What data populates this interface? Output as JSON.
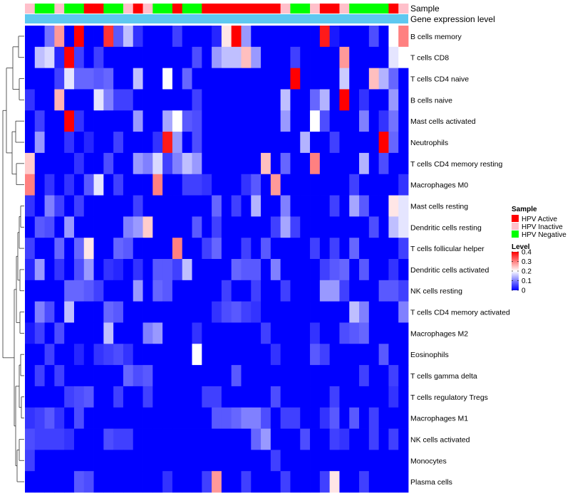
{
  "chart_data": {
    "type": "heatmap",
    "annotations": {
      "sample_label": "Sample",
      "expression_label": "Gene expression level",
      "sample_groups": [
        "Inactive",
        "Negative",
        "Negative",
        "Inactive",
        "Negative",
        "Negative",
        "Active",
        "Active",
        "Negative",
        "Negative",
        "Inactive",
        "Active",
        "Inactive",
        "Negative",
        "Negative",
        "Active",
        "Negative",
        "Negative",
        "Active",
        "Active",
        "Active",
        "Active",
        "Active",
        "Active",
        "Active",
        "Active",
        "Inactive",
        "Negative",
        "Negative",
        "Inactive",
        "Active",
        "Active",
        "Inactive",
        "Negative",
        "Negative",
        "Negative",
        "Negative",
        "Active",
        "Inactive"
      ]
    },
    "rows": [
      "B cells memory",
      "T cells CD8",
      "T cells CD4 naive",
      "B cells naive",
      "Mast cells activated",
      "Neutrophils",
      "T cells CD4 memory resting",
      "Macrophages M0",
      "Mast cells resting",
      "Dendritic cells resting",
      "T cells follicular helper",
      "Dendritic cells activated",
      "NK cells resting",
      "T cells CD4 memory activated",
      "Macrophages M2",
      "Eosinophils",
      "T cells gamma delta",
      "T cells regulatory  Tregs",
      "Macrophages M1",
      "NK cells activated",
      "Monocytes",
      "Plasma cells"
    ],
    "values": [
      [
        0,
        0,
        0.09,
        0.28,
        0,
        0.4,
        0,
        0,
        0.36,
        0.07,
        0.15,
        0.04,
        0,
        0,
        0,
        0.05,
        0,
        0,
        0,
        0.03,
        0.22,
        0.4,
        0.12,
        0,
        0,
        0,
        0,
        0,
        0,
        0,
        0.38,
        0.02,
        0,
        0,
        0,
        0.06,
        0,
        0.2,
        0.3
      ],
      [
        0,
        0.15,
        0.17,
        0.03,
        0.4,
        0.05,
        0,
        0.05,
        0,
        0,
        0,
        0,
        0,
        0,
        0,
        0,
        0,
        0.06,
        0,
        0.12,
        0.15,
        0.15,
        0.25,
        0.12,
        0,
        0,
        0,
        0.05,
        0,
        0,
        0,
        0,
        0.28,
        0,
        0,
        0,
        0,
        0.18,
        0.2
      ],
      [
        0,
        0,
        0,
        0.05,
        0.18,
        0.08,
        0.08,
        0.07,
        0.08,
        0,
        0,
        0.15,
        0,
        0,
        0.2,
        0,
        0.08,
        0,
        0,
        0,
        0,
        0,
        0,
        0,
        0,
        0,
        0,
        0.4,
        0,
        0,
        0,
        0,
        0.16,
        0,
        0,
        0.25,
        0.14,
        0.08,
        0
      ],
      [
        0.04,
        0,
        0,
        0.26,
        0,
        0,
        0,
        0.18,
        0.1,
        0.05,
        0.05,
        0,
        0,
        0,
        0,
        0,
        0,
        0.05,
        0,
        0,
        0,
        0,
        0,
        0,
        0,
        0,
        0.15,
        0,
        0,
        0.08,
        0.14,
        0,
        0.4,
        0,
        0.04,
        0,
        0,
        0.12,
        0
      ],
      [
        0,
        0.05,
        0,
        0,
        0.4,
        0.04,
        0,
        0,
        0,
        0,
        0,
        0.12,
        0,
        0,
        0.13,
        0.2,
        0.07,
        0.06,
        0,
        0,
        0,
        0,
        0,
        0,
        0,
        0,
        0.12,
        0,
        0,
        0.2,
        0.06,
        0,
        0,
        0,
        0.1,
        0,
        0.04,
        0.09,
        0
      ],
      [
        0,
        0.12,
        0,
        0,
        0.04,
        0,
        0.03,
        0,
        0,
        0.05,
        0,
        0,
        0,
        0.04,
        0.38,
        0.12,
        0,
        0.06,
        0,
        0,
        0,
        0,
        0,
        0,
        0,
        0,
        0,
        0,
        0.14,
        0,
        0,
        0.05,
        0,
        0,
        0,
        0,
        0.4,
        0.08,
        0
      ],
      [
        0.24,
        0,
        0,
        0,
        0,
        0.04,
        0,
        0,
        0.06,
        0,
        0,
        0.12,
        0.1,
        0.17,
        0.05,
        0.1,
        0.15,
        0.12,
        0,
        0,
        0,
        0,
        0,
        0,
        0.25,
        0,
        0.08,
        0,
        0,
        0.3,
        0,
        0,
        0,
        0,
        0.14,
        0,
        0.06,
        0,
        0
      ],
      [
        0.3,
        0,
        0.04,
        0,
        0.04,
        0,
        0.07,
        0.18,
        0,
        0.05,
        0,
        0,
        0,
        0.3,
        0,
        0,
        0.05,
        0.05,
        0.04,
        0,
        0,
        0,
        0.04,
        0.07,
        0,
        0.28,
        0,
        0,
        0,
        0,
        0,
        0,
        0,
        0.05,
        0,
        0,
        0,
        0,
        0.04
      ],
      [
        0.04,
        0,
        0.1,
        0.05,
        0,
        0.05,
        0,
        0,
        0,
        0,
        0,
        0.05,
        0,
        0,
        0,
        0,
        0,
        0,
        0,
        0.08,
        0,
        0.05,
        0,
        0.14,
        0,
        0,
        0.1,
        0,
        0,
        0,
        0,
        0.05,
        0,
        0.13,
        0.07,
        0,
        0,
        0.22,
        0.18
      ],
      [
        0,
        0.07,
        0.06,
        0,
        0.12,
        0,
        0,
        0,
        0,
        0,
        0.1,
        0.12,
        0.24,
        0,
        0,
        0,
        0,
        0.07,
        0,
        0.05,
        0,
        0,
        0,
        0,
        0,
        0.05,
        0.13,
        0.05,
        0,
        0,
        0,
        0,
        0,
        0,
        0,
        0.06,
        0,
        0.15,
        0.18
      ],
      [
        0.05,
        0,
        0,
        0.08,
        0,
        0.08,
        0.22,
        0,
        0,
        0.08,
        0.07,
        0,
        0,
        0,
        0,
        0.3,
        0,
        0,
        0.05,
        0.08,
        0,
        0,
        0.05,
        0,
        0.07,
        0,
        0,
        0,
        0,
        0.05,
        0,
        0.05,
        0,
        0.08,
        0,
        0,
        0,
        0,
        0.05
      ],
      [
        0.03,
        0.12,
        0,
        0.04,
        0,
        0.06,
        0.12,
        0,
        0.04,
        0.03,
        0,
        0.04,
        0,
        0.07,
        0.07,
        0.05,
        0.15,
        0,
        0,
        0,
        0,
        0.08,
        0.07,
        0.07,
        0,
        0.1,
        0,
        0,
        0,
        0,
        0.05,
        0.07,
        0.08,
        0,
        0.07,
        0,
        0,
        0.04,
        0
      ],
      [
        0,
        0,
        0,
        0,
        0.08,
        0.08,
        0.07,
        0.05,
        0,
        0,
        0,
        0.12,
        0,
        0.08,
        0.07,
        0,
        0,
        0,
        0,
        0,
        0.05,
        0,
        0,
        0.05,
        0,
        0,
        0.05,
        0,
        0,
        0,
        0.12,
        0.12,
        0.05,
        0,
        0,
        0,
        0.07,
        0.07,
        0.05
      ],
      [
        0,
        0.1,
        0.06,
        0,
        0.15,
        0,
        0,
        0,
        0.08,
        0.07,
        0,
        0,
        0,
        0,
        0,
        0,
        0,
        0,
        0,
        0.04,
        0.06,
        0.07,
        0.05,
        0.04,
        0,
        0,
        0,
        0,
        0,
        0,
        0,
        0,
        0,
        0.15,
        0.1,
        0,
        0,
        0,
        0.1
      ],
      [
        0.02,
        0.05,
        0,
        0.06,
        0,
        0,
        0,
        0,
        0.15,
        0,
        0,
        0,
        0.1,
        0.12,
        0,
        0,
        0,
        0.04,
        0,
        0,
        0,
        0,
        0,
        0,
        0.05,
        0,
        0,
        0,
        0,
        0.04,
        0,
        0,
        0.06,
        0.07,
        0.08,
        0,
        0,
        0,
        0
      ],
      [
        0,
        0,
        0.05,
        0,
        0,
        0.03,
        0,
        0.04,
        0.05,
        0.06,
        0.04,
        0,
        0,
        0,
        0,
        0,
        0,
        0.2,
        0,
        0,
        0,
        0,
        0,
        0,
        0,
        0.04,
        0,
        0,
        0,
        0.07,
        0.05,
        0,
        0,
        0,
        0,
        0,
        0.07,
        0,
        0
      ],
      [
        0,
        0.05,
        0,
        0.05,
        0,
        0,
        0,
        0,
        0,
        0,
        0.08,
        0.06,
        0.07,
        0,
        0,
        0,
        0,
        0,
        0,
        0,
        0,
        0.07,
        0,
        0,
        0,
        0,
        0,
        0,
        0,
        0,
        0,
        0,
        0,
        0,
        0.05,
        0,
        0,
        0.05,
        0
      ],
      [
        0,
        0,
        0,
        0,
        0.05,
        0.06,
        0.07,
        0,
        0,
        0.05,
        0,
        0,
        0.05,
        0,
        0,
        0,
        0,
        0,
        0.05,
        0.05,
        0,
        0,
        0,
        0,
        0,
        0.06,
        0,
        0,
        0,
        0,
        0,
        0.05,
        0,
        0,
        0,
        0,
        0,
        0.04,
        0
      ],
      [
        0.04,
        0.05,
        0.07,
        0.04,
        0,
        0.06,
        0,
        0,
        0,
        0,
        0,
        0,
        0,
        0,
        0,
        0,
        0,
        0,
        0,
        0.07,
        0.07,
        0.08,
        0.1,
        0.1,
        0.06,
        0,
        0.05,
        0.05,
        0,
        0,
        0.04,
        0.07,
        0,
        0.07,
        0,
        0.05,
        0,
        0,
        0
      ],
      [
        0.06,
        0.05,
        0.05,
        0.05,
        0.04,
        0,
        0,
        0,
        0.06,
        0.05,
        0.05,
        0,
        0,
        0,
        0,
        0,
        0,
        0,
        0,
        0,
        0,
        0,
        0,
        0.08,
        0.12,
        0,
        0,
        0,
        0.06,
        0,
        0,
        0.05,
        0.04,
        0,
        0,
        0.05,
        0,
        0.05,
        0
      ],
      [
        0.05,
        0,
        0,
        0,
        0,
        0,
        0,
        0,
        0,
        0,
        0,
        0,
        0,
        0,
        0,
        0,
        0,
        0,
        0,
        0,
        0,
        0,
        0,
        0,
        0,
        0.05,
        0,
        0,
        0,
        0,
        0,
        0,
        0,
        0,
        0,
        0,
        0,
        0,
        0
      ],
      [
        0,
        0,
        0,
        0,
        0,
        0.07,
        0.06,
        0,
        0,
        0,
        0,
        0,
        0,
        0,
        0.04,
        0,
        0,
        0,
        0.05,
        0.28,
        0,
        0,
        0.05,
        0,
        0,
        0,
        0.05,
        0,
        0,
        0,
        0.05,
        0.22,
        0,
        0,
        0.05,
        0,
        0,
        0,
        0
      ]
    ],
    "color_scale": {
      "low": "#0000ff",
      "mid": "#ffffff",
      "high": "#ff0000",
      "midpoint": 0.2,
      "max": 0.4
    },
    "legend": {
      "sample_title": "Sample",
      "sample_entries": [
        {
          "key": "Active",
          "label": "HPV Active",
          "color": "#ff0000"
        },
        {
          "key": "Inactive",
          "label": "HPV Inactive",
          "color": "#ffc0cb"
        },
        {
          "key": "Negative",
          "label": "HPV Negative",
          "color": "#00ff00"
        }
      ],
      "level_title": "Level",
      "level_ticks": [
        "0.4",
        "0.3",
        "0.2",
        "0.1",
        "0"
      ],
      "level_tick_values": [
        0.4,
        0.3,
        0.2,
        0.1,
        0
      ],
      "placement": "right"
    },
    "expression_bar_color": "#5ec8f0",
    "dendrogram": "left"
  }
}
